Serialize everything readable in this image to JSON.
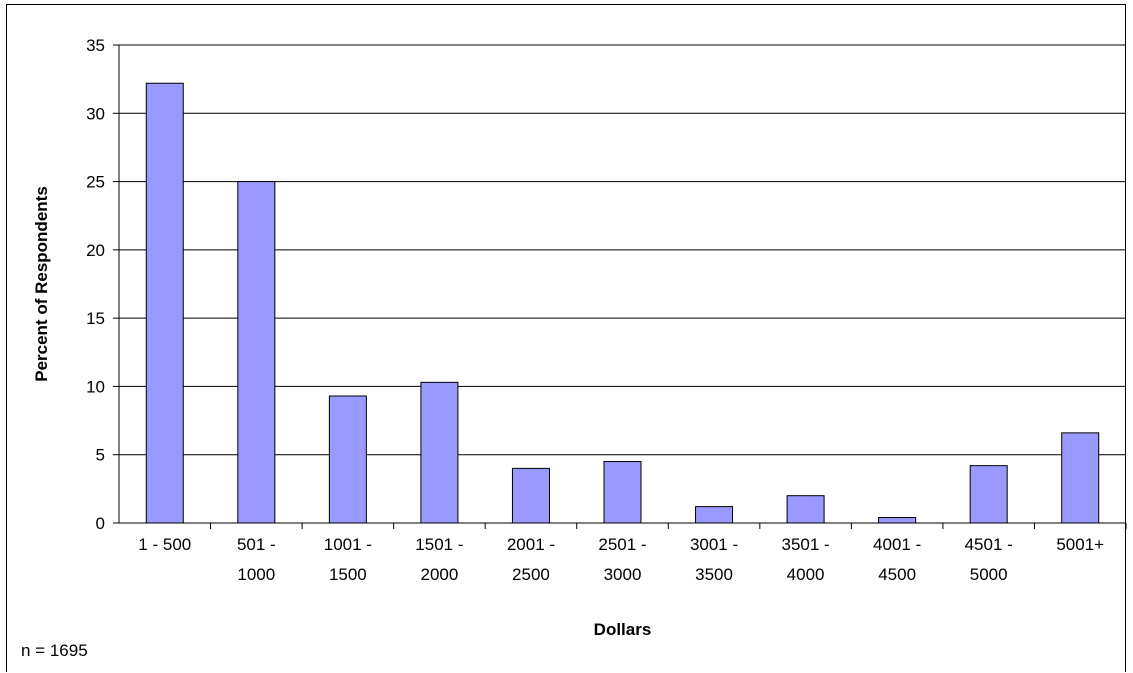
{
  "chart_data": {
    "type": "bar",
    "categories": [
      [
        "1 - 500"
      ],
      [
        "501 -",
        "1000"
      ],
      [
        "1001 -",
        "1500"
      ],
      [
        "1501 -",
        "2000"
      ],
      [
        "2001 -",
        "2500"
      ],
      [
        "2501 -",
        "3000"
      ],
      [
        "3001 -",
        "3500"
      ],
      [
        "3501 -",
        "4000"
      ],
      [
        "4001 -",
        "4500"
      ],
      [
        "4501 -",
        "5000"
      ],
      [
        "5001+"
      ]
    ],
    "values": [
      32.2,
      25.0,
      9.3,
      10.3,
      4.0,
      4.5,
      1.2,
      2.0,
      0.4,
      4.2,
      6.6
    ],
    "xlabel": "Dollars",
    "ylabel": "Percent of Respondents",
    "ylim": [
      0,
      35
    ],
    "yticks": [
      0,
      5,
      10,
      15,
      20,
      25,
      30,
      35
    ],
    "grid": true,
    "bar_color": "#9999ff",
    "bar_stroke": "#000000"
  },
  "note": "n = 1695"
}
